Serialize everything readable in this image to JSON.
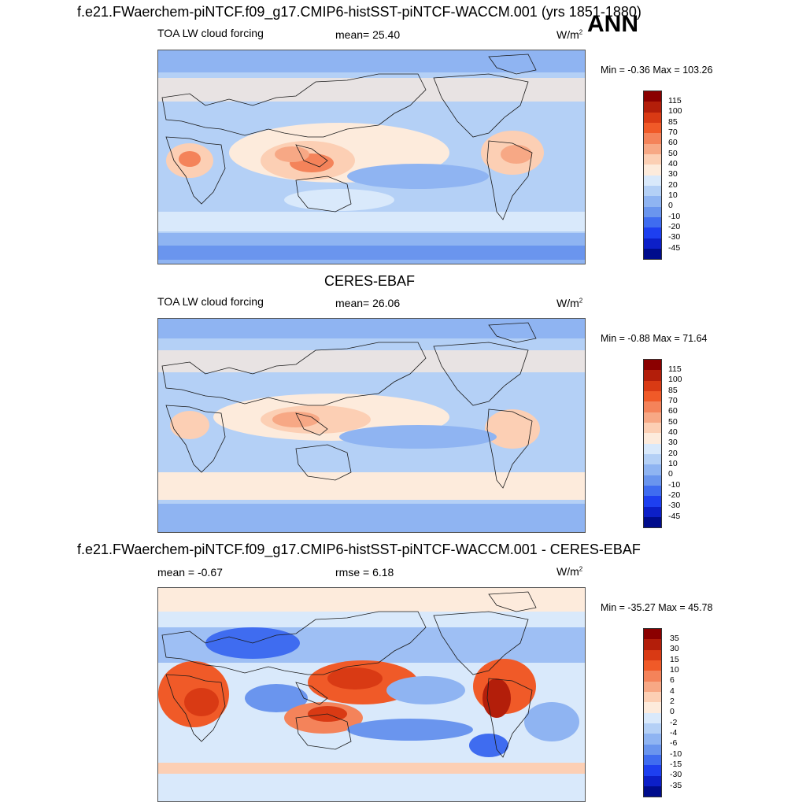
{
  "header": {
    "title": "f.e21.FWaerchem-piNTCF.f09_g17.CMIP6-histSST-piNTCF-WACCM.001 (yrs 1851-1880)",
    "season": "ANN"
  },
  "panels": [
    {
      "variable": "TOA LW cloud forcing",
      "stat_text": "mean=  25.40",
      "units": "W/m",
      "units_exp": "2",
      "minmax": "Min =  -0.36 Max = 103.26"
    },
    {
      "title": "CERES-EBAF",
      "variable": "TOA LW cloud forcing",
      "stat_text": "mean=  26.06",
      "units": "W/m",
      "units_exp": "2",
      "minmax": "Min =  -0.88 Max =  71.64"
    },
    {
      "title": "f.e21.FWaerchem-piNTCF.f09_g17.CMIP6-histSST-piNTCF-WACCM.001 - CERES-EBAF",
      "stat_text": "mean =  -0.67",
      "stat2_text": "rmse =   6.18",
      "units": "W/m",
      "units_exp": "2",
      "minmax": "Min = -35.27 Max =  45.78"
    }
  ],
  "colorbars": {
    "absolute": {
      "labels": [
        "115",
        "100",
        "85",
        "70",
        "60",
        "50",
        "40",
        "30",
        "20",
        "10",
        "0",
        "-10",
        "-20",
        "-30",
        "-45"
      ],
      "colors": [
        "#8b0000",
        "#b31e0a",
        "#d93a14",
        "#f05a28",
        "#f4835a",
        "#f7a885",
        "#fccfb4",
        "#fdebdc",
        "#d9e9fb",
        "#b4d0f6",
        "#8fb4f2",
        "#6a95ee",
        "#3f6cf0",
        "#1d3ff0",
        "#0c1fc8",
        "#000c8c"
      ]
    },
    "difference": {
      "labels": [
        "35",
        "30",
        "15",
        "10",
        "6",
        "4",
        "2",
        "0",
        "-2",
        "-4",
        "-6",
        "-10",
        "-15",
        "-30",
        "-35"
      ],
      "colors": [
        "#8b0000",
        "#b31e0a",
        "#d93a14",
        "#f05a28",
        "#f4835a",
        "#f7a885",
        "#fccfb4",
        "#fdebdc",
        "#d9e9fb",
        "#b4d0f6",
        "#8fb4f2",
        "#6a95ee",
        "#3f6cf0",
        "#1d3ff0",
        "#0c1fc8",
        "#000c8c"
      ]
    }
  },
  "colors": {
    "land_outline": "#1a1a1a"
  }
}
